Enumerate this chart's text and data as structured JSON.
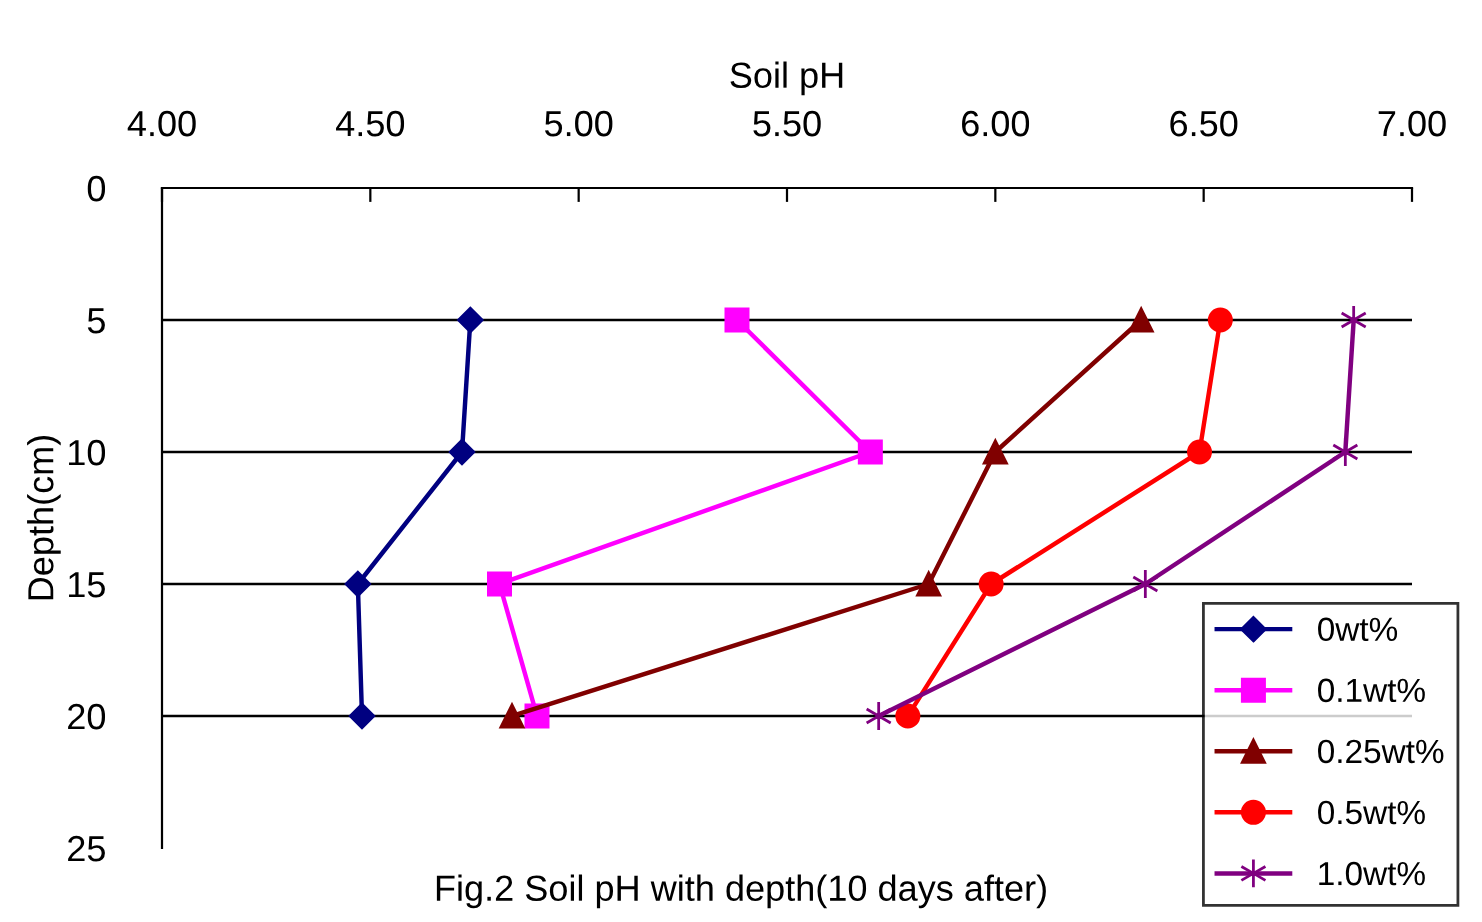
{
  "chart_data": {
    "type": "line",
    "xlabel": "Soil pH",
    "ylabel": "Depth(cm)",
    "xlim": [
      4.0,
      7.0
    ],
    "xticks": [
      {
        "value": 4.0,
        "label": "4.00"
      },
      {
        "value": 4.5,
        "label": "4.50"
      },
      {
        "value": 5.0,
        "label": "5.00"
      },
      {
        "value": 5.5,
        "label": "5.50"
      },
      {
        "value": 6.0,
        "label": "6.00"
      },
      {
        "value": 6.5,
        "label": "6.50"
      },
      {
        "value": 7.0,
        "label": "7.00"
      }
    ],
    "ylim": [
      25,
      0
    ],
    "yticks": [
      0,
      5,
      10,
      15,
      20,
      25
    ],
    "grid": "y",
    "legend": "bottom right",
    "annotations": [
      "Fig.2 Soil pH with depth(10 days after)"
    ],
    "series": [
      {
        "name": "0wt%",
        "color": "#000080",
        "marker": "diamond",
        "x": [
          4.74,
          4.72,
          4.47,
          4.48
        ],
        "values": [
          5,
          10,
          15,
          20
        ]
      },
      {
        "name": "0.1wt%",
        "color": "#ff00ff",
        "marker": "square",
        "x": [
          5.38,
          5.7,
          4.81,
          4.9
        ],
        "values": [
          5,
          10,
          15,
          20
        ]
      },
      {
        "name": "0.25wt%",
        "color": "#800000",
        "marker": "triangle",
        "x": [
          6.35,
          6.0,
          5.84,
          4.84
        ],
        "values": [
          5,
          10,
          15,
          20
        ]
      },
      {
        "name": "0.5wt%",
        "color": "#ff0000",
        "marker": "circle",
        "x": [
          6.54,
          6.49,
          5.99,
          5.79
        ],
        "values": [
          5,
          10,
          15,
          20
        ]
      },
      {
        "name": "1.0wt%",
        "color": "#800080",
        "marker": "cross",
        "x": [
          6.86,
          6.84,
          6.36,
          5.72
        ],
        "values": [
          5,
          10,
          15,
          20
        ]
      }
    ]
  }
}
